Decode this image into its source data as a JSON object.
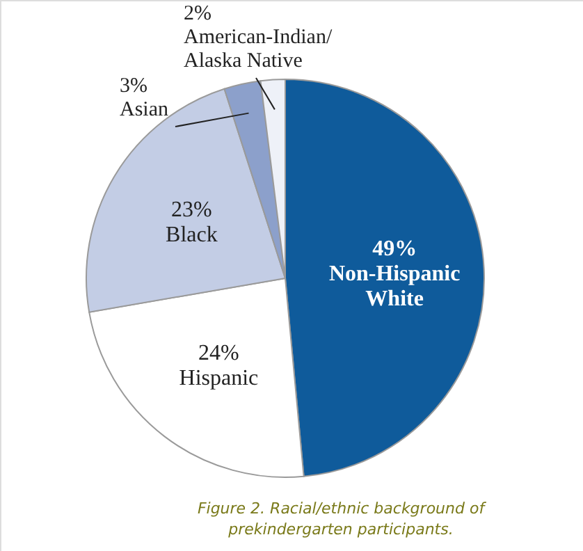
{
  "chart_data": {
    "type": "pie",
    "categories": [
      "Non-Hispanic White",
      "Hispanic",
      "Black",
      "Asian",
      "American-Indian/Alaska Native"
    ],
    "values": [
      49,
      24,
      23,
      3,
      2
    ],
    "value_labels": [
      "49%",
      "24%",
      "23%",
      "3%",
      "2%"
    ],
    "colors": [
      "#0f5b9b",
      "#ffffff",
      "#c3cde5",
      "#8ca0cb",
      "#eef1f8"
    ],
    "annotations": [
      "Figure 2. Racial/ethnic background of prekindergarten participants."
    ]
  }
}
